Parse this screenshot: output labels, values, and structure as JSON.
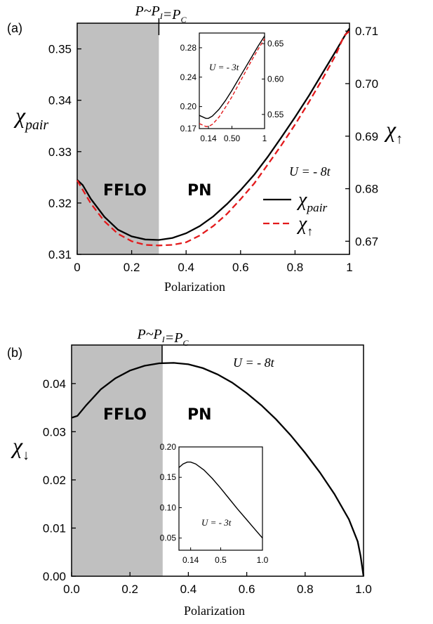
{
  "panels": {
    "a": {
      "label": "(a)",
      "transition_label": "P~P_I=P_C"
    },
    "b": {
      "label": "(b)",
      "transition_label": "P~P_I=P_C"
    }
  },
  "colors": {
    "shade": "#c0c0c0",
    "pair": "#000000",
    "up": "#e31a1c",
    "down": "#000000",
    "axes": "#000000"
  },
  "chart_data": [
    {
      "id": "panel-a",
      "type": "line",
      "xlabel": "Polarization",
      "ylabel_left": "χ_pair",
      "ylabel_right": "χ_↑",
      "xlim": [
        0,
        1
      ],
      "ylim_left": [
        0.31,
        0.355
      ],
      "ylim_right": [
        0.6675,
        0.7115
      ],
      "xticks": [
        "0",
        "0.2",
        "0.4",
        "0.6",
        "0.8",
        "1"
      ],
      "yticks_left": [
        "0.31",
        "0.32",
        "0.33",
        "0.34",
        "0.35"
      ],
      "yticks_right": [
        "0.67",
        "0.68",
        "0.69",
        "0.70",
        "0.71"
      ],
      "shaded_region": {
        "from": 0,
        "to": 0.3,
        "label": "FFLO"
      },
      "unshaded_label": "PN",
      "annotation": "U = - 8t",
      "series": [
        {
          "name": "χ_pair",
          "axis": "left",
          "style": "solid",
          "x": [
            0,
            0.02,
            0.05,
            0.1,
            0.15,
            0.2,
            0.25,
            0.3,
            0.35,
            0.4,
            0.45,
            0.5,
            0.55,
            0.6,
            0.65,
            0.7,
            0.75,
            0.8,
            0.85,
            0.9,
            0.95,
            0.98,
            1.0
          ],
          "y": [
            0.3245,
            0.3235,
            0.3208,
            0.3173,
            0.3148,
            0.3135,
            0.3129,
            0.3128,
            0.3132,
            0.3141,
            0.3155,
            0.3174,
            0.3198,
            0.3225,
            0.3255,
            0.329,
            0.3328,
            0.3367,
            0.3408,
            0.3452,
            0.3496,
            0.3523,
            0.354
          ]
        },
        {
          "name": "χ_↑",
          "axis": "right",
          "style": "dashed",
          "x": [
            0,
            0.02,
            0.05,
            0.1,
            0.15,
            0.2,
            0.25,
            0.3,
            0.35,
            0.4,
            0.45,
            0.5,
            0.55,
            0.6,
            0.65,
            0.7,
            0.75,
            0.8,
            0.85,
            0.9,
            0.95,
            0.98,
            1.0
          ],
          "y": [
            0.6816,
            0.6798,
            0.6772,
            0.6738,
            0.6714,
            0.67,
            0.6693,
            0.6692,
            0.6693,
            0.6698,
            0.6711,
            0.6729,
            0.6752,
            0.678,
            0.681,
            0.6846,
            0.6883,
            0.6922,
            0.6964,
            0.7008,
            0.7055,
            0.7091,
            0.71
          ]
        }
      ],
      "inset": {
        "annotation": "U = - 3t",
        "xticks": [
          "0.14",
          "0.50",
          "1"
        ],
        "yticks_left": [
          "0.17",
          "0.20",
          "0.24",
          "0.28"
        ],
        "yticks_right": [
          "0.55",
          "0.60",
          "0.65"
        ],
        "xlim": [
          0,
          1
        ],
        "ylim_left": [
          0.17,
          0.3
        ],
        "ylim_right": [
          0.53,
          0.665
        ],
        "series": [
          {
            "axis": "left",
            "style": "solid",
            "x": [
              0,
              0.1,
              0.14,
              0.2,
              0.3,
              0.4,
              0.5,
              0.6,
              0.7,
              0.8,
              0.9,
              1.0
            ],
            "y": [
              0.188,
              0.184,
              0.184,
              0.187,
              0.196,
              0.208,
              0.222,
              0.237,
              0.252,
              0.267,
              0.282,
              0.296
            ]
          },
          {
            "axis": "right",
            "style": "dashed",
            "x": [
              0,
              0.1,
              0.14,
              0.2,
              0.3,
              0.4,
              0.5,
              0.6,
              0.7,
              0.8,
              0.9,
              1.0
            ],
            "y": [
              0.537,
              0.533,
              0.533,
              0.536,
              0.546,
              0.56,
              0.575,
              0.592,
              0.609,
              0.626,
              0.642,
              0.657
            ]
          }
        ]
      }
    },
    {
      "id": "panel-b",
      "type": "line",
      "xlabel": "Polarization",
      "ylabel": "χ_↓",
      "xlim": [
        0,
        1
      ],
      "ylim": [
        0,
        0.048
      ],
      "xticks": [
        "0.0",
        "0.2",
        "0.4",
        "0.6",
        "0.8",
        "1.0"
      ],
      "yticks": [
        "0.00",
        "0.01",
        "0.02",
        "0.03",
        "0.04"
      ],
      "shaded_region": {
        "from": 0,
        "to": 0.3,
        "label": "FFLO"
      },
      "unshaded_label": "PN",
      "annotation": "U = - 8t",
      "series": [
        {
          "name": "χ_↓",
          "style": "solid",
          "x": [
            0,
            0.02,
            0.05,
            0.1,
            0.15,
            0.2,
            0.25,
            0.3,
            0.35,
            0.4,
            0.45,
            0.5,
            0.55,
            0.6,
            0.65,
            0.7,
            0.75,
            0.8,
            0.85,
            0.9,
            0.95,
            0.98,
            0.99,
            1.0
          ],
          "y": [
            0.0329,
            0.0333,
            0.0355,
            0.0388,
            0.0411,
            0.0427,
            0.0437,
            0.0442,
            0.0443,
            0.044,
            0.0432,
            0.0419,
            0.0402,
            0.038,
            0.0355,
            0.0326,
            0.0293,
            0.0256,
            0.0216,
            0.0171,
            0.0118,
            0.0072,
            0.0042,
            0.0
          ]
        }
      ],
      "inset": {
        "annotation": "U = - 3t",
        "xticks": [
          "0.14",
          "0.5",
          "1.0"
        ],
        "yticks": [
          "0.05",
          "0.10",
          "0.15",
          "0.20"
        ],
        "xlim": [
          0,
          1
        ],
        "ylim": [
          0.03,
          0.2
        ],
        "series": [
          {
            "style": "solid",
            "x": [
              0,
              0.05,
              0.1,
              0.14,
              0.2,
              0.3,
              0.4,
              0.5,
              0.6,
              0.7,
              0.8,
              0.9,
              1.0
            ],
            "y": [
              0.166,
              0.172,
              0.175,
              0.175,
              0.172,
              0.162,
              0.148,
              0.132,
              0.115,
              0.098,
              0.082,
              0.066,
              0.05
            ]
          }
        ]
      }
    }
  ]
}
